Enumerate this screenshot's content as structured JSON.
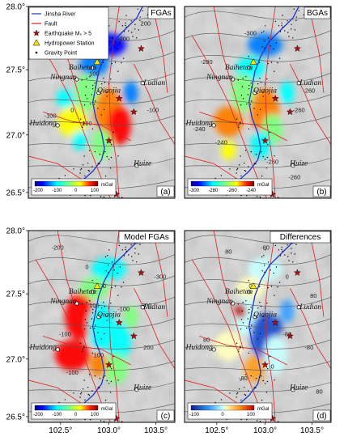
{
  "axes": {
    "lat_ticks": [
      "28.0°",
      "27.5°",
      "27.0°",
      "26.5°"
    ],
    "lon_ticks": [
      "102.5°",
      "103.0°",
      "103.5°"
    ]
  },
  "legend": [
    {
      "label": "Jinsha River",
      "symbol": "line",
      "color": "#2233cc"
    },
    {
      "label": "Fault",
      "symbol": "line",
      "color": "#e02020"
    },
    {
      "label": "Earthquake Mₛ > 5",
      "symbol": "star",
      "color": "#b01010"
    },
    {
      "label": "Hydropower Station",
      "symbol": "triangle",
      "color": "#ffe600"
    },
    {
      "label": "Gravity Point",
      "symbol": "dot",
      "color": "#000000"
    }
  ],
  "places": {
    "baihetan": "Baihetan",
    "ningnan": "Ningnan",
    "qiaojia": "Qiaojia",
    "ludian": "Ludian",
    "huidong": "Huidong",
    "huize": "Huize"
  },
  "panels": [
    {
      "key": "a",
      "title": "FGAs",
      "letter": "(a)",
      "colorbar": {
        "ticks": [
          "-200",
          "-100",
          "0",
          "100"
        ],
        "unit": "mGal"
      },
      "contours": [
        "200",
        "100",
        "0",
        "-100",
        "-200",
        "-100",
        "100",
        "0"
      ]
    },
    {
      "key": "b",
      "title": "BGAs",
      "letter": "(b)",
      "colorbar": {
        "ticks": [
          "-300",
          "-280",
          "-260",
          "-240"
        ],
        "unit": "mGal"
      },
      "contours": [
        "-300",
        "-280",
        "-260",
        "-260",
        "-260",
        "-240",
        "-240",
        "-260"
      ]
    },
    {
      "key": "c",
      "title": "Model FGAs",
      "letter": "(c)",
      "colorbar": {
        "ticks": [
          "-200",
          "-100",
          "0",
          "100"
        ],
        "unit": "mGal"
      },
      "contours": [
        "-300",
        "-200",
        "-100",
        "0",
        "100",
        "200",
        "-100",
        "0",
        "-200",
        "100",
        "-100"
      ]
    },
    {
      "key": "d",
      "title": "Differences",
      "letter": "(d)",
      "colorbar": {
        "ticks": [
          "-100",
          "0",
          "100"
        ],
        "unit": "mGal"
      },
      "contours": [
        "80",
        "-80",
        "0",
        "80",
        "0",
        "-80",
        "80",
        "-80",
        "0",
        "-80",
        "80"
      ]
    }
  ],
  "colors": {
    "jet": [
      "#00007f",
      "#0000ff",
      "#007fff",
      "#00ffff",
      "#7fff7f",
      "#ffff00",
      "#ff7f00",
      "#ff0000",
      "#7f0000"
    ],
    "river": "#2233cc",
    "fault": "#e02020",
    "star": "#b01010"
  }
}
